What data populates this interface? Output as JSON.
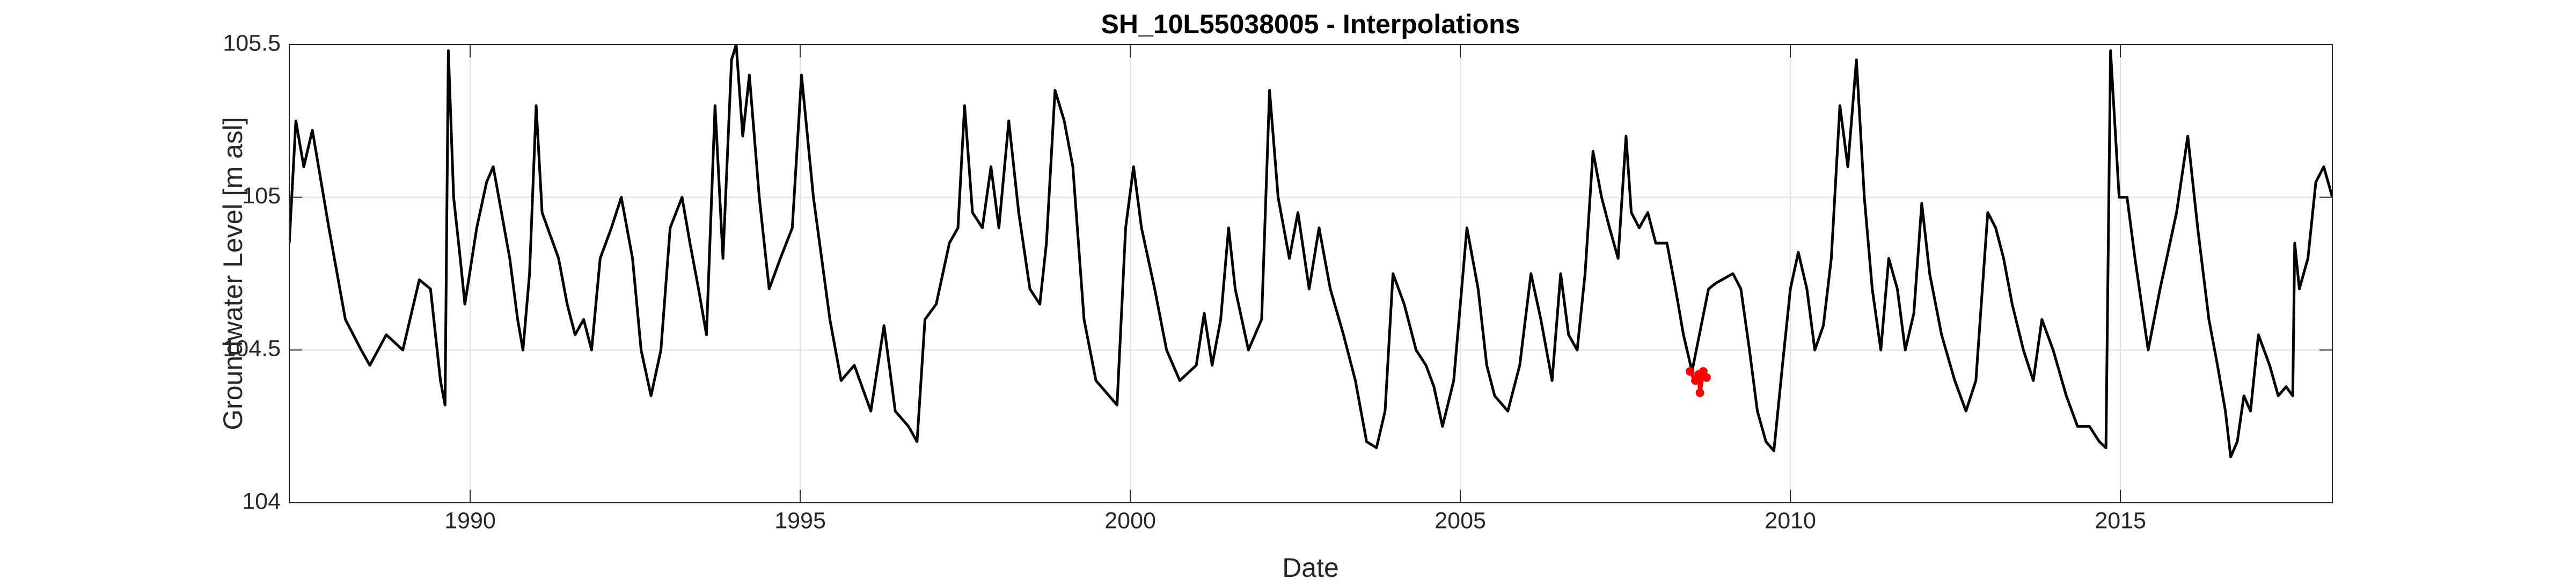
{
  "chart_data": {
    "type": "line",
    "title": "SH_10L55038005 - Interpolations",
    "x_label": "Date",
    "y_label": "Groundwater Level [m asl]",
    "xlim": [
      1987.26,
      2018.21
    ],
    "ylim": [
      104,
      105.5
    ],
    "xticks": [
      1990,
      1995,
      2000,
      2005,
      2010,
      2015
    ],
    "yticks": [
      104,
      104.5,
      105,
      105.5
    ],
    "grid": true,
    "series": [
      {
        "color": "#000000",
        "x": [
          1987.26,
          1987.36,
          1987.48,
          1987.61,
          1987.86,
          1988.11,
          1988.35,
          1988.48,
          1988.73,
          1988.98,
          1989.23,
          1989.4,
          1989.55,
          1989.62,
          1989.67,
          1989.75,
          1989.85,
          1989.92,
          1990.1,
          1990.25,
          1990.35,
          1990.6,
          1990.72,
          1990.8,
          1990.9,
          1991.0,
          1991.09,
          1991.34,
          1991.47,
          1991.59,
          1991.72,
          1991.84,
          1991.97,
          1992.14,
          1992.29,
          1992.46,
          1992.59,
          1992.74,
          1992.89,
          1993.03,
          1993.21,
          1993.33,
          1993.46,
          1993.58,
          1993.71,
          1993.83,
          1993.96,
          1994.03,
          1994.13,
          1994.23,
          1994.38,
          1994.53,
          1994.7,
          1994.88,
          1995.02,
          1995.2,
          1995.45,
          1995.62,
          1995.82,
          1996.07,
          1996.27,
          1996.44,
          1996.64,
          1996.77,
          1996.89,
          1997.06,
          1997.26,
          1997.39,
          1997.49,
          1997.61,
          1997.76,
          1997.89,
          1998.01,
          1998.16,
          1998.31,
          1998.48,
          1998.63,
          1998.73,
          1998.86,
          1999.0,
          1999.13,
          1999.3,
          1999.48,
          1999.68,
          1999.8,
          1999.93,
          2000.05,
          2000.17,
          2000.37,
          2000.55,
          2000.75,
          2001.0,
          2001.12,
          2001.24,
          2001.37,
          2001.49,
          2001.59,
          2001.79,
          2001.99,
          2002.11,
          2002.24,
          2002.41,
          2002.54,
          2002.71,
          2002.86,
          2003.03,
          2003.23,
          2003.41,
          2003.58,
          2003.73,
          2003.86,
          2003.98,
          2004.15,
          2004.33,
          2004.48,
          2004.6,
          2004.73,
          2004.9,
          2005.1,
          2005.27,
          2005.4,
          2005.52,
          2005.72,
          2005.9,
          2006.07,
          2006.22,
          2006.39,
          2006.52,
          2006.64,
          2006.77,
          2006.89,
          2007.01,
          2007.14,
          2007.26,
          2007.39,
          2007.51,
          2007.59,
          2007.71,
          2007.84,
          2007.96,
          2008.13,
          2008.26,
          2008.38,
          2008.51,
          2008.76,
          2008.88,
          2009.13,
          2009.25,
          2009.38,
          2009.5,
          2009.63,
          2009.75,
          2009.88,
          2010.0,
          2010.12,
          2010.25,
          2010.37,
          2010.5,
          2010.62,
          2010.75,
          2010.87,
          2011.0,
          2011.12,
          2011.24,
          2011.37,
          2011.49,
          2011.62,
          2011.74,
          2011.87,
          2011.99,
          2012.11,
          2012.29,
          2012.49,
          2012.66,
          2012.81,
          2012.99,
          2013.11,
          2013.23,
          2013.36,
          2013.53,
          2013.68,
          2013.81,
          2013.98,
          2014.18,
          2014.35,
          2014.53,
          2014.68,
          2014.78,
          2014.85,
          2014.98,
          2015.1,
          2015.22,
          2015.42,
          2015.6,
          2015.85,
          2016.02,
          2016.17,
          2016.34,
          2016.47,
          2016.59,
          2016.67,
          2016.77,
          2016.87,
          2016.97,
          2017.09,
          2017.26,
          2017.39,
          2017.51,
          2017.61,
          2017.64,
          2017.71,
          2017.84,
          2017.96,
          2018.08,
          2018.21
        ],
        "values": [
          104.85,
          105.25,
          105.1,
          105.22,
          104.9,
          104.6,
          104.5,
          104.45,
          104.55,
          104.5,
          104.73,
          104.7,
          104.4,
          104.32,
          105.48,
          105.0,
          104.8,
          104.65,
          104.9,
          105.05,
          105.1,
          104.8,
          104.6,
          104.5,
          104.75,
          105.3,
          104.95,
          104.8,
          104.65,
          104.55,
          104.6,
          104.5,
          104.8,
          104.9,
          105.0,
          104.8,
          104.5,
          104.35,
          104.5,
          104.9,
          105.0,
          104.85,
          104.7,
          104.55,
          105.3,
          104.8,
          105.45,
          105.5,
          105.2,
          105.4,
          105.0,
          104.7,
          104.8,
          104.9,
          105.4,
          105.0,
          104.6,
          104.4,
          104.45,
          104.3,
          104.58,
          104.3,
          104.25,
          104.2,
          104.6,
          104.65,
          104.85,
          104.9,
          105.3,
          104.95,
          104.9,
          105.1,
          104.9,
          105.25,
          104.95,
          104.7,
          104.65,
          104.85,
          105.35,
          105.25,
          105.1,
          104.6,
          104.4,
          104.35,
          104.32,
          104.9,
          105.1,
          104.9,
          104.7,
          104.5,
          104.4,
          104.45,
          104.62,
          104.45,
          104.6,
          104.9,
          104.7,
          104.5,
          104.6,
          105.35,
          105.0,
          104.8,
          104.95,
          104.7,
          104.9,
          104.7,
          104.55,
          104.4,
          104.2,
          104.18,
          104.3,
          104.75,
          104.65,
          104.5,
          104.45,
          104.38,
          104.25,
          104.4,
          104.9,
          104.7,
          104.45,
          104.35,
          104.3,
          104.45,
          104.75,
          104.6,
          104.4,
          104.75,
          104.55,
          104.5,
          104.75,
          105.15,
          105.0,
          104.9,
          104.8,
          105.2,
          104.95,
          104.9,
          104.95,
          104.85,
          104.85,
          104.7,
          104.55,
          104.43,
          104.7,
          104.72,
          104.75,
          104.7,
          104.5,
          104.3,
          104.2,
          104.17,
          104.45,
          104.7,
          104.82,
          104.7,
          104.5,
          104.58,
          104.8,
          105.3,
          105.1,
          105.45,
          105.0,
          104.7,
          104.5,
          104.8,
          104.7,
          104.5,
          104.62,
          104.98,
          104.75,
          104.55,
          104.4,
          104.3,
          104.4,
          104.95,
          104.9,
          104.8,
          104.65,
          104.5,
          104.4,
          104.6,
          104.5,
          104.35,
          104.25,
          104.25,
          104.2,
          104.18,
          105.48,
          105.0,
          105.0,
          104.8,
          104.5,
          104.7,
          104.95,
          105.2,
          104.9,
          104.6,
          104.45,
          104.3,
          104.15,
          104.2,
          104.35,
          104.3,
          104.55,
          104.45,
          104.35,
          104.38,
          104.35,
          104.85,
          104.7,
          104.8,
          105.05,
          105.1,
          105.0
        ]
      },
      {
        "color": "#ff0000",
        "x": [
          2008.48,
          2008.56,
          2008.61,
          2008.63,
          2008.68,
          2008.73
        ],
        "values": [
          104.43,
          104.4,
          104.42,
          104.36,
          104.43,
          104.41
        ]
      }
    ]
  }
}
